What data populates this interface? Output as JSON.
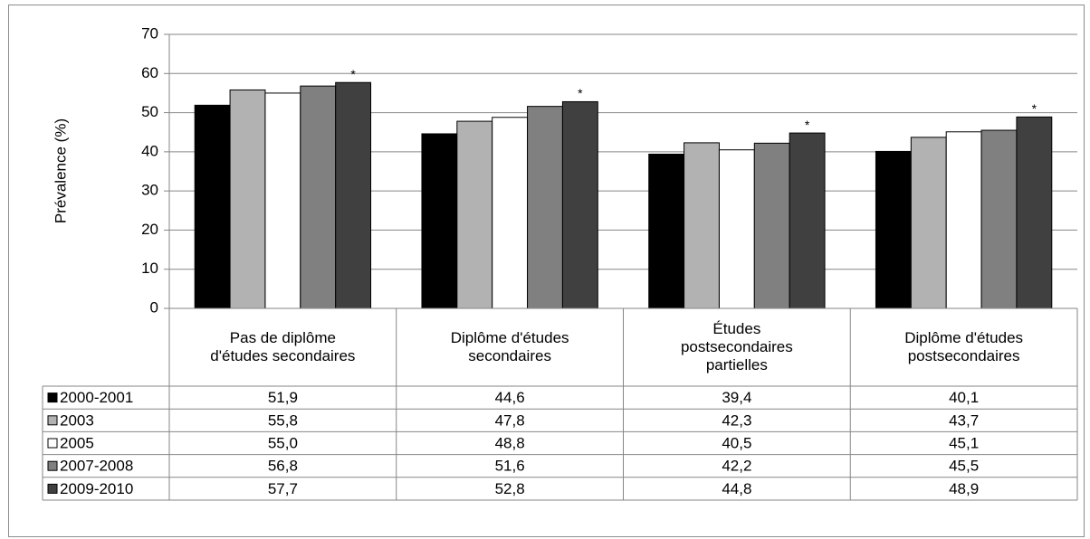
{
  "chart_data": {
    "type": "bar",
    "y_label": "Prévalence (%)",
    "categories": [
      "Pas de diplôme d'études secondaires",
      "Diplôme d'études secondaires",
      "Études postsecondaires partielles",
      "Diplôme d'études postsecondaires"
    ],
    "series": [
      {
        "name": "2000-2001",
        "color": "#000000",
        "values": [
          51.9,
          44.6,
          39.4,
          40.1
        ],
        "value_labels": [
          "51,9",
          "44,6",
          "39,4",
          "40,1"
        ]
      },
      {
        "name": "2003",
        "color": "#b2b2b2",
        "values": [
          55.8,
          47.8,
          42.3,
          43.7
        ],
        "value_labels": [
          "55,8",
          "47,8",
          "42,3",
          "43,7"
        ]
      },
      {
        "name": "2005",
        "color": "#ffffff",
        "values": [
          55.0,
          48.8,
          40.5,
          45.1
        ],
        "value_labels": [
          "55,0",
          "48,8",
          "40,5",
          "45,1"
        ]
      },
      {
        "name": "2007-2008",
        "color": "#808080",
        "values": [
          56.8,
          51.6,
          42.2,
          45.5
        ],
        "value_labels": [
          "56,8",
          "51,6",
          "42,2",
          "45,5"
        ]
      },
      {
        "name": "2009-2010",
        "color": "#404040",
        "values": [
          57.7,
          52.8,
          44.8,
          48.9
        ],
        "value_labels": [
          "57,7",
          "52,8",
          "44,8",
          "48,9"
        ],
        "annotations": [
          "*",
          "*",
          "*",
          "*"
        ]
      }
    ],
    "ylim": [
      0,
      70
    ],
    "yticks": [
      0,
      10,
      20,
      30,
      40,
      50,
      60,
      70
    ],
    "grid": true
  }
}
